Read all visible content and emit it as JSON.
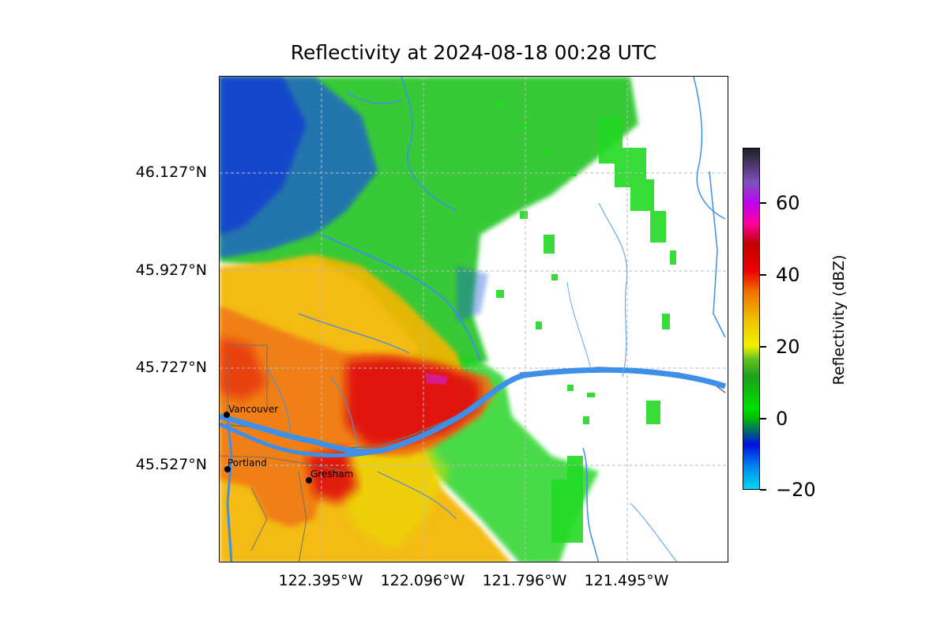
{
  "title": "Reflectivity at 2024-08-18 00:28 UTC",
  "lat_labels": [
    "46.127°N",
    "45.927°N",
    "45.727°N",
    "45.527°N"
  ],
  "lon_labels": [
    "122.395°W",
    "122.096°W",
    "121.796°W",
    "121.495°W"
  ],
  "colorbar": {
    "label": "Reflectivity (dBZ)",
    "ticks": [
      "60",
      "40",
      "20",
      "0",
      "−20"
    ],
    "range": [
      -20,
      75
    ]
  },
  "cities": [
    {
      "name": "Vancouver"
    },
    {
      "name": "Portland"
    },
    {
      "name": "Gresham"
    }
  ],
  "colors": {
    "river": "#3d8fe8",
    "road": "#707070",
    "grid": "#bbbbbb"
  }
}
